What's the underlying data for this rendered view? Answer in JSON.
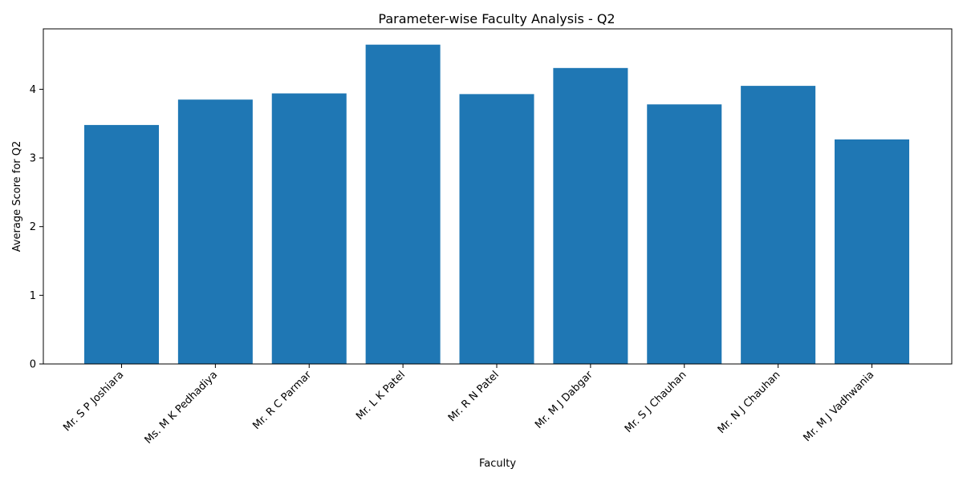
{
  "chart_data": {
    "type": "bar",
    "title": "Parameter-wise Faculty Analysis - Q2",
    "xlabel": "Faculty",
    "ylabel": "Average Score for Q2",
    "categories": [
      "Mr. S P Joshiara",
      "Ms. M K Pedhadiya",
      "Mr. R C Parmar",
      "Mr. L K Patel",
      "Mr. R N Patel",
      "Mr. M J Dabgar",
      "Mr. S J Chauhan",
      "Mr. N J Chauhan",
      "Mr. M J Vadhwania"
    ],
    "values": [
      3.48,
      3.85,
      3.94,
      4.65,
      3.93,
      4.31,
      3.78,
      4.05,
      3.27
    ],
    "ylim": [
      0,
      4.88
    ],
    "yticks": [
      0,
      1,
      2,
      3,
      4
    ],
    "grid": false,
    "bar_color": "#1f77b4"
  }
}
